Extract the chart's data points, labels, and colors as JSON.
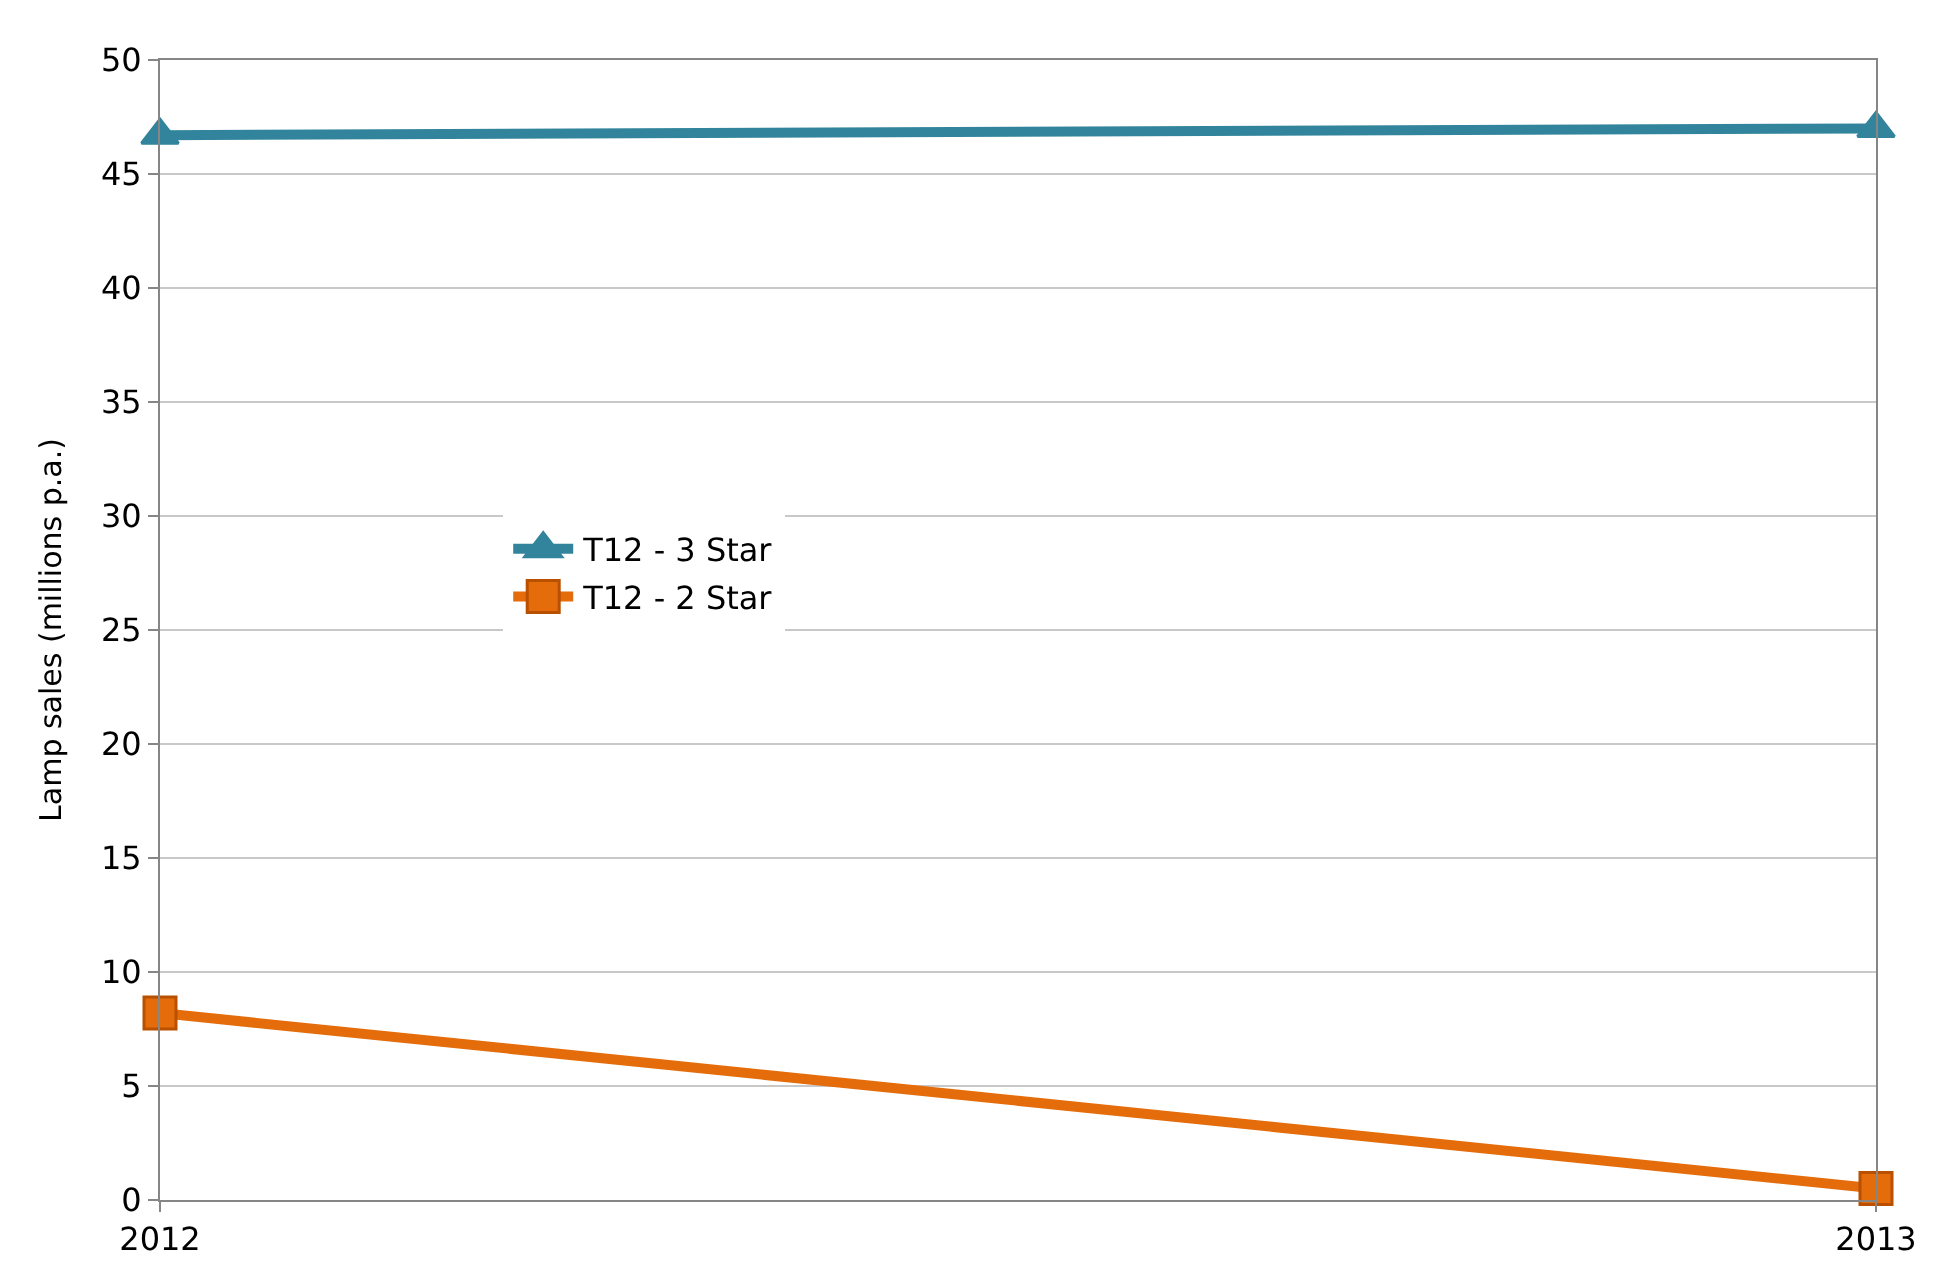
{
  "chart_data": {
    "type": "line",
    "ylabel": "Lamp sales (millions p.a.)",
    "x": [
      2012,
      2013
    ],
    "xlim": [
      2012,
      2013
    ],
    "xticks": [
      2012,
      2013
    ],
    "ylim": [
      0,
      50
    ],
    "yticks": [
      0,
      5,
      10,
      15,
      20,
      25,
      30,
      35,
      40,
      45,
      50
    ],
    "grid": "y",
    "legend": "left",
    "series": [
      {
        "name": "T12 - 3 Star",
        "color": "#31849b",
        "marker": "triangle",
        "values": [
          46.7,
          47.0
        ]
      },
      {
        "name": "T12 - 2 Star",
        "color": "#e46c0a",
        "marker": "square",
        "values": [
          8.2,
          0.5
        ]
      }
    ]
  }
}
